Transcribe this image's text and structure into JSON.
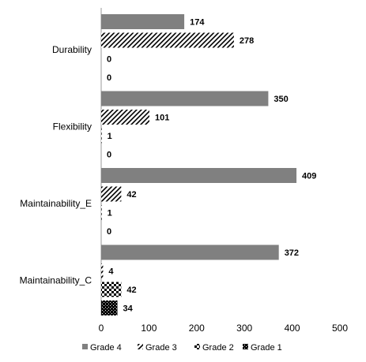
{
  "chart_data": {
    "type": "bar",
    "orientation": "horizontal",
    "categories": [
      "Durability",
      "Flexibility",
      "Maintainability_E",
      "Maintainability_C"
    ],
    "series": [
      {
        "name": "Grade 4",
        "values": [
          174,
          350,
          409,
          372
        ],
        "pattern": "solid-gray",
        "color": "#808080"
      },
      {
        "name": "Grade 3",
        "values": [
          278,
          101,
          42,
          4
        ],
        "pattern": "diagonal-stripes",
        "color": "#000000"
      },
      {
        "name": "Grade 2",
        "values": [
          0,
          1,
          1,
          42
        ],
        "pattern": "checker",
        "color": "#000000"
      },
      {
        "name": "Grade 1",
        "values": [
          0,
          0,
          0,
          34
        ],
        "pattern": "dense-dots",
        "color": "#000000"
      }
    ],
    "xlim": [
      0,
      500
    ],
    "xticks": [
      0,
      100,
      200,
      300,
      400,
      500
    ],
    "grid": false,
    "legend_position": "bottom"
  }
}
